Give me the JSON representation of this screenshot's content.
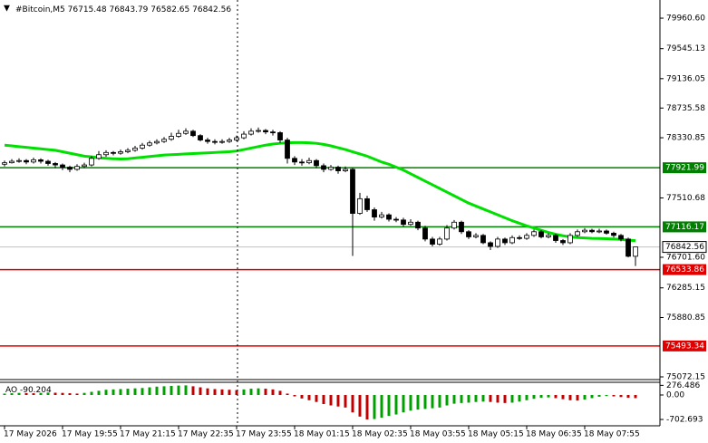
{
  "chart_data": {
    "type": "candlestick",
    "symbol": "#Bitcoin,M5",
    "bull_color": "#ffffff",
    "bear_color": "#000000",
    "ylim": [
      75035,
      80208
    ],
    "yticks": [
      {
        "value": 79960.6,
        "label": "79960.60"
      },
      79545.13,
      79136.05,
      78735.58,
      78330.85,
      77510.68,
      {
        "value": 76701.6,
        "label": "76701.60"
      },
      76285.15,
      75880.85,
      75072.15
    ],
    "xticks": [
      {
        "value": 0,
        "label": "17 May 2026"
      },
      {
        "value": 8,
        "label": "17 May 19:55"
      },
      {
        "value": 16,
        "label": "17 May 21:15"
      },
      {
        "value": 24,
        "label": "17 May 22:35"
      },
      {
        "value": 32,
        "label": "17 May 23:55"
      },
      {
        "value": 40,
        "label": "18 May 01:15"
      },
      {
        "value": 48,
        "label": "18 May 02:35"
      },
      {
        "value": 56,
        "label": "18 May 03:55"
      },
      {
        "value": 64,
        "label": "18 May 05:15"
      },
      {
        "value": 72,
        "label": "18 May 06:35"
      },
      {
        "value": 80,
        "label": "18 May 07:55"
      }
    ],
    "levels": [
      {
        "value": 77921.99,
        "color": "#008000"
      },
      {
        "value": 77116.17,
        "color": "#008000"
      },
      {
        "value": 76533.86,
        "color": "#e00000"
      },
      {
        "value": 75493.34,
        "color": "#e00000"
      }
    ],
    "current_price": 76842.56,
    "candles": [
      [
        77970,
        78020,
        77940,
        77990
      ],
      [
        77990,
        78040,
        77980,
        78010
      ],
      [
        78010,
        78050,
        77990,
        78020
      ],
      [
        78020,
        78040,
        77970,
        78000
      ],
      [
        78000,
        78060,
        77980,
        78030
      ],
      [
        78030,
        78050,
        77980,
        78010
      ],
      [
        78010,
        78030,
        77950,
        77980
      ],
      [
        77980,
        78000,
        77920,
        77960
      ],
      [
        77960,
        77980,
        77890,
        77930
      ],
      [
        77930,
        77950,
        77860,
        77900
      ],
      [
        77900,
        77970,
        77880,
        77940
      ],
      [
        77940,
        77990,
        77920,
        77960
      ],
      [
        77960,
        78080,
        77940,
        78050
      ],
      [
        78050,
        78150,
        78030,
        78100
      ],
      [
        78100,
        78160,
        78070,
        78130
      ],
      [
        78130,
        78150,
        78090,
        78120
      ],
      [
        78120,
        78170,
        78100,
        78140
      ],
      [
        78140,
        78190,
        78120,
        78160
      ],
      [
        78160,
        78220,
        78140,
        78190
      ],
      [
        78190,
        78260,
        78170,
        78230
      ],
      [
        78230,
        78290,
        78210,
        78260
      ],
      [
        78260,
        78310,
        78240,
        78280
      ],
      [
        78280,
        78340,
        78260,
        78310
      ],
      [
        78310,
        78400,
        78290,
        78350
      ],
      [
        78350,
        78440,
        78330,
        78390
      ],
      [
        78390,
        78460,
        78370,
        78420
      ],
      [
        78420,
        78440,
        78340,
        78360
      ],
      [
        78360,
        78380,
        78280,
        78300
      ],
      [
        78300,
        78330,
        78250,
        78280
      ],
      [
        78280,
        78310,
        78240,
        78270
      ],
      [
        78270,
        78310,
        78250,
        78280
      ],
      [
        78280,
        78330,
        78260,
        78300
      ],
      [
        78300,
        78360,
        78280,
        78330
      ],
      [
        78330,
        78420,
        78310,
        78380
      ],
      [
        78380,
        78460,
        78360,
        78420
      ],
      [
        78420,
        78470,
        78400,
        78430
      ],
      [
        78430,
        78450,
        78380,
        78410
      ],
      [
        78410,
        78440,
        78360,
        78400
      ],
      [
        78400,
        78420,
        78260,
        78300
      ],
      [
        78300,
        78330,
        77980,
        78050
      ],
      [
        78050,
        78080,
        77960,
        78000
      ],
      [
        78000,
        78040,
        77950,
        77990
      ],
      [
        77990,
        78060,
        77970,
        78020
      ],
      [
        78020,
        78040,
        77920,
        77950
      ],
      [
        77950,
        77980,
        77860,
        77900
      ],
      [
        77900,
        77960,
        77880,
        77930
      ],
      [
        77930,
        77950,
        77840,
        77880
      ],
      [
        77880,
        77940,
        77860,
        77900
      ],
      [
        77900,
        77920,
        76720,
        77300
      ],
      [
        77300,
        77580,
        77280,
        77500
      ],
      [
        77500,
        77540,
        77320,
        77350
      ],
      [
        77350,
        77380,
        77200,
        77250
      ],
      [
        77250,
        77320,
        77230,
        77280
      ],
      [
        77280,
        77300,
        77190,
        77220
      ],
      [
        77220,
        77250,
        77180,
        77210
      ],
      [
        77210,
        77240,
        77120,
        77150
      ],
      [
        77150,
        77220,
        77130,
        77180
      ],
      [
        77180,
        77200,
        77070,
        77100
      ],
      [
        77100,
        77130,
        76920,
        76950
      ],
      [
        76950,
        76980,
        76850,
        76880
      ],
      [
        76880,
        76980,
        76860,
        76950
      ],
      [
        76950,
        77140,
        76930,
        77100
      ],
      [
        77100,
        77210,
        77080,
        77180
      ],
      [
        77180,
        77200,
        77020,
        77050
      ],
      [
        77050,
        77070,
        76950,
        76980
      ],
      [
        76980,
        77030,
        76960,
        77000
      ],
      [
        77000,
        77020,
        76880,
        76900
      ],
      [
        76900,
        76920,
        76800,
        76850
      ],
      [
        76850,
        76980,
        76830,
        76950
      ],
      [
        76950,
        76970,
        76870,
        76900
      ],
      [
        76900,
        77000,
        76880,
        76970
      ],
      [
        76970,
        77000,
        76940,
        76960
      ],
      [
        76960,
        77030,
        76940,
        77000
      ],
      [
        77000,
        77080,
        76980,
        77050
      ],
      [
        77050,
        77070,
        76960,
        76980
      ],
      [
        76980,
        77030,
        76960,
        77000
      ],
      [
        77000,
        77020,
        76900,
        76930
      ],
      [
        76930,
        76950,
        76870,
        76900
      ],
      [
        76900,
        77030,
        76880,
        77000
      ],
      [
        77000,
        77080,
        76980,
        77050
      ],
      [
        77050,
        77100,
        77030,
        77070
      ],
      [
        77070,
        77090,
        77030,
        77050
      ],
      [
        77050,
        77090,
        77030,
        77060
      ],
      [
        77060,
        77080,
        77010,
        77030
      ],
      [
        77030,
        77050,
        76970,
        77000
      ],
      [
        77000,
        77020,
        76920,
        76950
      ],
      [
        76950,
        76970,
        76700,
        76715.48
      ],
      [
        76715.48,
        76843.79,
        76582.65,
        76842.56
      ]
    ],
    "moving_average": {
      "color": "#00e000",
      "values": [
        78230,
        78220,
        78210,
        78200,
        78190,
        78180,
        78170,
        78160,
        78140,
        78120,
        78100,
        78080,
        78070,
        78060,
        78050,
        78045,
        78042,
        78045,
        78055,
        78065,
        78075,
        78085,
        78095,
        78100,
        78105,
        78110,
        78115,
        78120,
        78125,
        78130,
        78135,
        78140,
        78150,
        78170,
        78190,
        78210,
        78230,
        78245,
        78255,
        78262,
        78265,
        78265,
        78262,
        78255,
        78240,
        78220,
        78195,
        78170,
        78140,
        78110,
        78080,
        78040,
        78000,
        77970,
        77930,
        77890,
        77840,
        77790,
        77740,
        77690,
        77640,
        77590,
        77540,
        77490,
        77440,
        77400,
        77360,
        77320,
        77280,
        77240,
        77200,
        77165,
        77130,
        77100,
        77070,
        77040,
        77015,
        76995,
        76980,
        76970,
        76965,
        76960,
        76958,
        76955,
        76950,
        76945,
        76935,
        76928
      ]
    },
    "oscillator": {
      "type": "histogram",
      "name": "AO",
      "up_color": "#00a000",
      "down_color": "#c00000",
      "ylim": [
        -884,
        364
      ],
      "yticks": [
        276.486,
        {
          "value": 0,
          "label": "0.00"
        },
        -702.693
      ],
      "values": [
        40,
        50,
        60,
        55,
        50,
        60,
        70,
        65,
        60,
        50,
        40,
        60,
        90,
        120,
        150,
        160,
        170,
        180,
        190,
        200,
        220,
        240,
        250,
        260,
        270,
        276,
        250,
        220,
        190,
        170,
        160,
        150,
        140,
        160,
        180,
        190,
        180,
        160,
        120,
        40,
        -40,
        -100,
        -150,
        -200,
        -260,
        -300,
        -330,
        -360,
        -500,
        -620,
        -702,
        -690,
        -650,
        -600,
        -560,
        -500,
        -450,
        -420,
        -400,
        -380,
        -360,
        -300,
        -250,
        -230,
        -220,
        -200,
        -190,
        -200,
        -220,
        -230,
        -220,
        -190,
        -150,
        -110,
        -80,
        -70,
        -90,
        -120,
        -150,
        -160,
        -130,
        -90,
        -50,
        -30,
        -40,
        -60,
        -80,
        -90.204
      ]
    }
  }
}
